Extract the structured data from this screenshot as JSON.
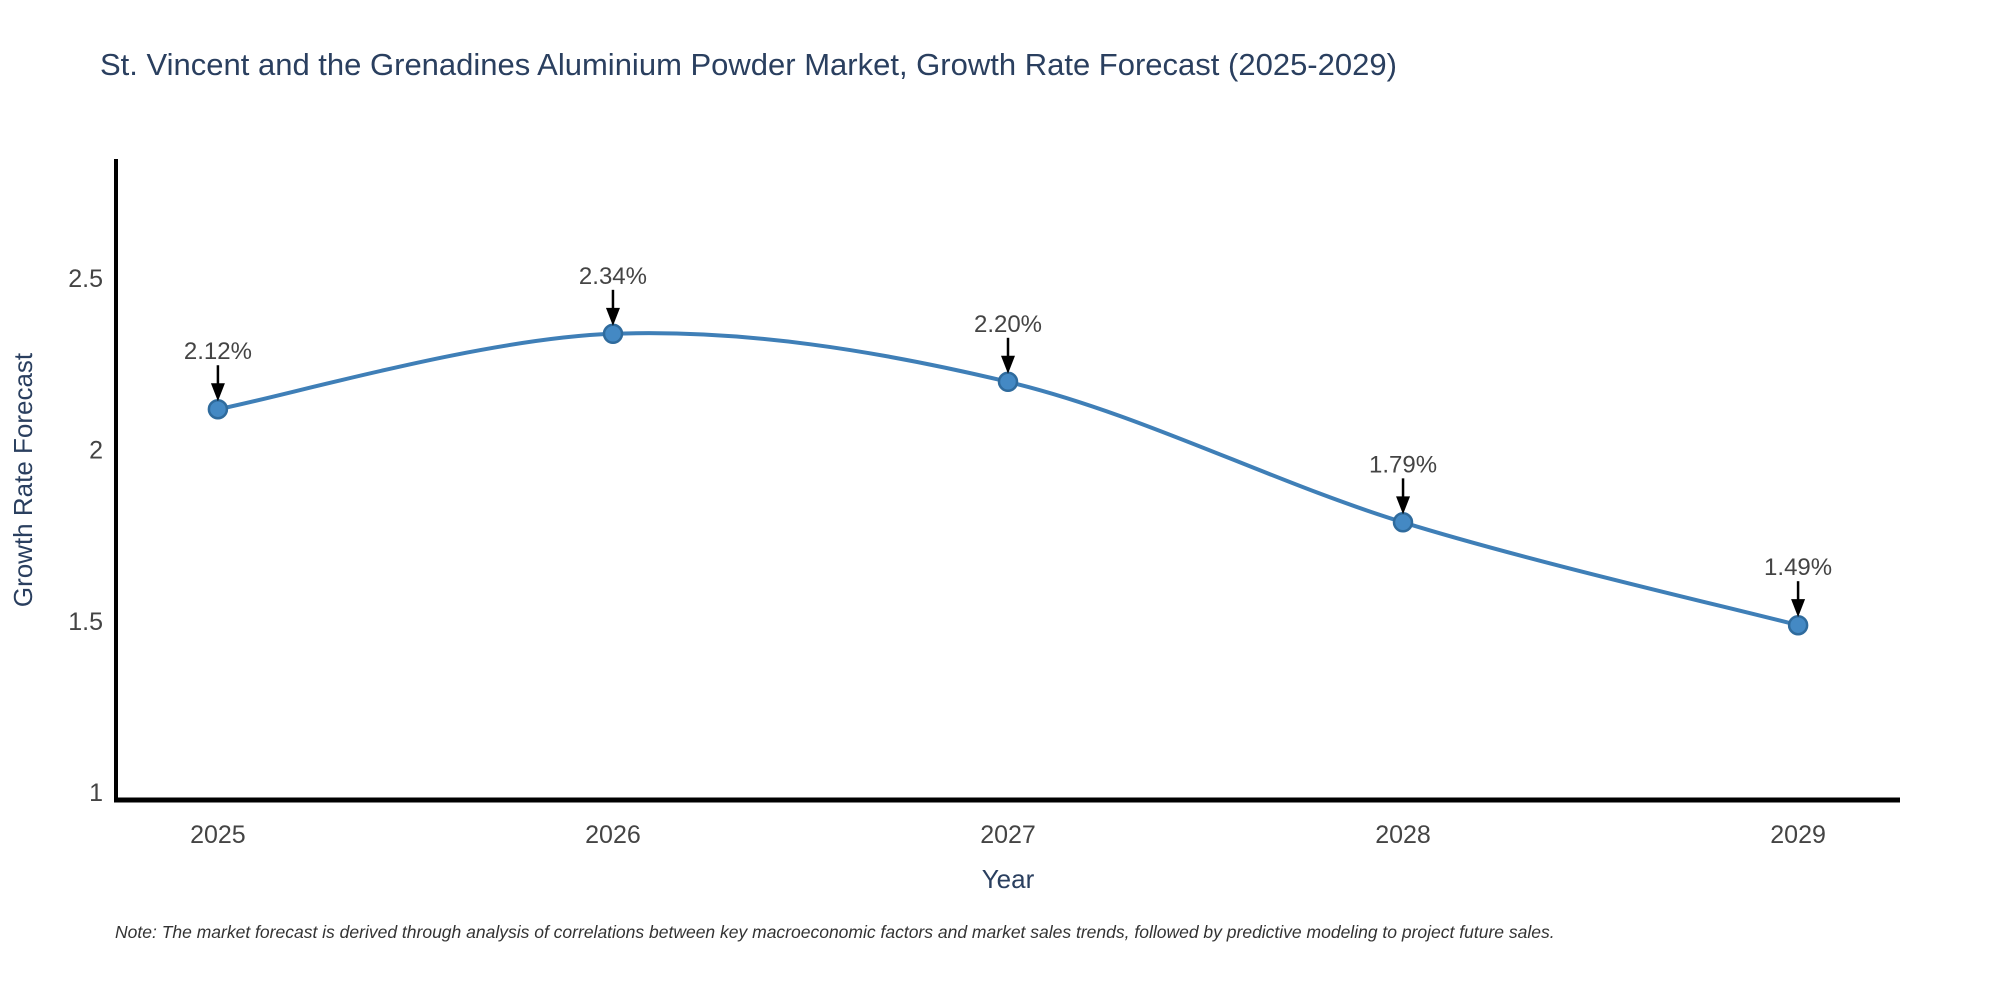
{
  "note": "Note: The market forecast is derived through analysis of correlations between key macroeconomic factors and market sales trends, followed by predictive modeling to project future sales.",
  "chart_data": {
    "type": "line",
    "title": "St. Vincent and the Grenadines Aluminium Powder Market, Growth Rate Forecast (2025-2029)",
    "xlabel": "Year",
    "ylabel": "Growth Rate Forecast",
    "x": [
      2025,
      2026,
      2027,
      2028,
      2029
    ],
    "y": [
      2.12,
      2.34,
      2.2,
      1.79,
      1.49
    ],
    "point_labels": [
      "2.12%",
      "2.34%",
      "2.20%",
      "1.79%",
      "1.49%"
    ],
    "xticklabels": [
      "2025",
      "2026",
      "2027",
      "2028",
      "2029"
    ],
    "yticks": [
      1,
      1.5,
      2,
      2.5
    ],
    "yticklabels": [
      "1",
      "1.5",
      "2",
      "2.5"
    ],
    "xlim": [
      2024.742,
      2029.258
    ],
    "ylim": [
      0.98,
      2.85
    ],
    "line_shape": "spline",
    "grid": false,
    "legend": false,
    "markers": true,
    "colors": {
      "line": "#3f7fb7",
      "marker_fill": "#4489c4",
      "marker_edge": "#2f6b9d",
      "arrow": "#000000",
      "axis_line": "#000000",
      "title_text": "#2a3f5f",
      "tick_text": "#444444",
      "label_text": "#444444",
      "background": "#ffffff"
    }
  }
}
